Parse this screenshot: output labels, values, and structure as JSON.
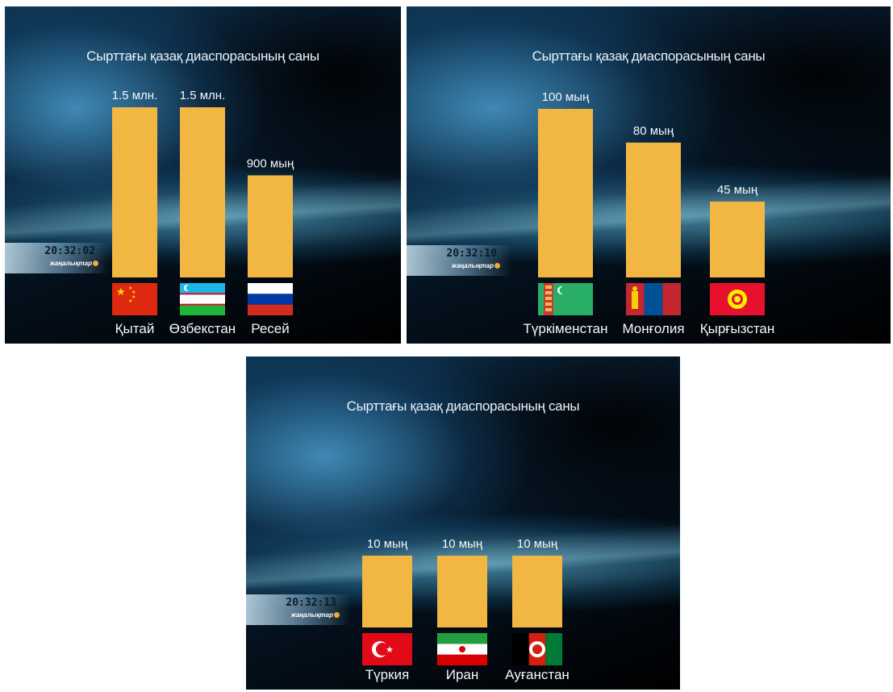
{
  "colors": {
    "bar": "#f2b643",
    "label": "#f4f7fa"
  },
  "brand": "жаңалықтар",
  "chart_data": [
    {
      "type": "bar",
      "title": "Сырттағы қазақ диаспорасының саны",
      "timestamp": "20:32:02",
      "categories": [
        "Қытай",
        "Өзбекстан",
        "Ресей"
      ],
      "values": [
        1500000,
        1500000,
        900000
      ],
      "value_labels": [
        "1.5 млн.",
        "1.5 млн.",
        "900 мың"
      ],
      "flags": [
        "china-flag",
        "uzbekistan-flag",
        "russia-flag"
      ],
      "xlabel": "",
      "ylabel": "",
      "ylim": [
        0,
        1500000
      ]
    },
    {
      "type": "bar",
      "title": "Сырттағы қазақ диаспорасының саны",
      "timestamp": "20:32:10",
      "categories": [
        "Түркіменстан",
        "Монғолия",
        "Қырғызстан"
      ],
      "values": [
        100000,
        80000,
        45000
      ],
      "value_labels": [
        "100 мың",
        "80 мың",
        "45 мың"
      ],
      "flags": [
        "turkmenistan-flag",
        "mongolia-flag",
        "kyrgyzstan-flag"
      ],
      "xlabel": "",
      "ylabel": "",
      "ylim": [
        0,
        100000
      ]
    },
    {
      "type": "bar",
      "title": "Сырттағы қазақ диаспорасының саны",
      "timestamp": "20:32:13",
      "categories": [
        "Түркия",
        "Иран",
        "Ауғанстан"
      ],
      "values": [
        10000,
        10000,
        10000
      ],
      "value_labels": [
        "10 мың",
        "10 мың",
        "10 мың"
      ],
      "flags": [
        "turkey-flag",
        "iran-flag",
        "afghanistan-flag"
      ],
      "xlabel": "",
      "ylabel": "",
      "ylim": [
        0,
        10000
      ]
    }
  ]
}
